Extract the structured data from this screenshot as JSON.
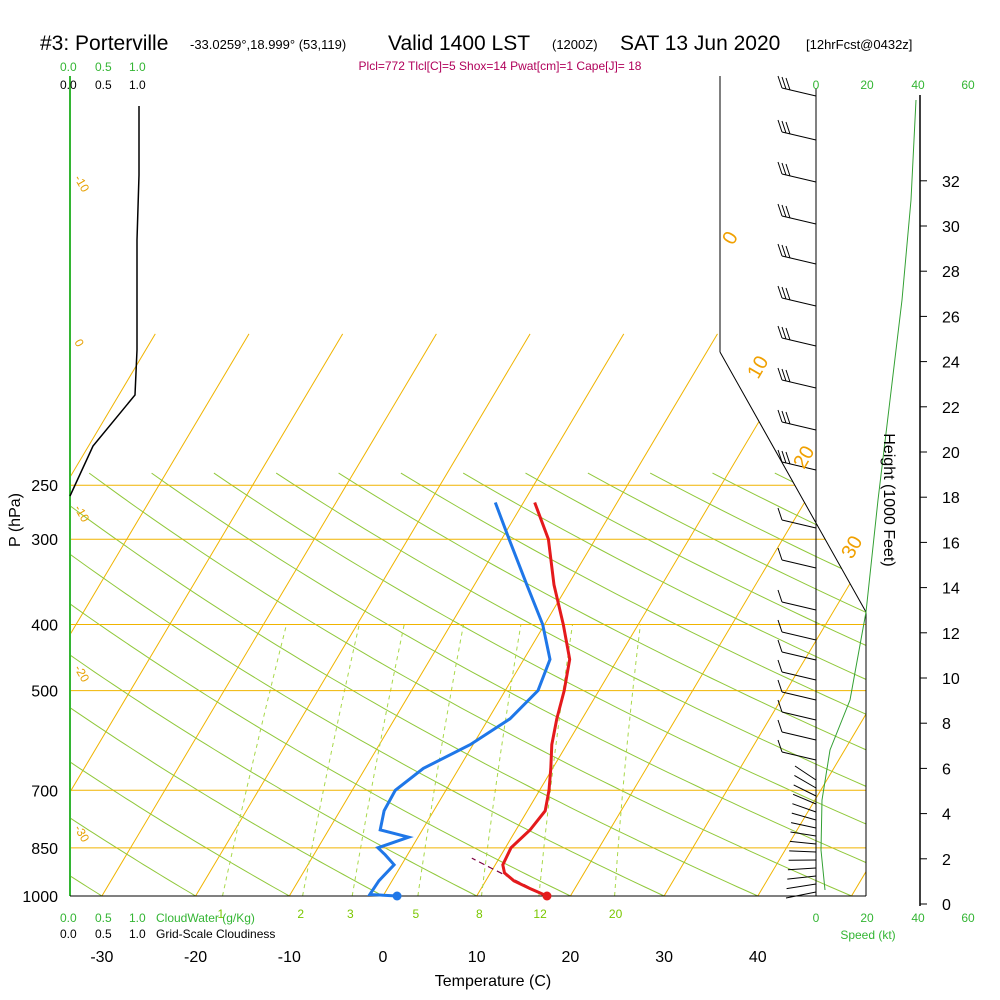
{
  "header": {
    "station": "#3: Porterville",
    "coords": "-33.0259°,18.999° (53,119)",
    "valid": "Valid 1400 LST",
    "zulu": "(1200Z)",
    "date": "SAT 13 Jun 2020",
    "forecast": "[12hrFcst@0432z]",
    "params": "Plcl=772 Tlcl[C]=5 Shox=14 Pwat[cm]=1 Cape[J]= 18"
  },
  "chart_data": {
    "type": "line",
    "xlabel": "Temperature (C)",
    "ylabel": "P (hPa)",
    "y2label": "Height (1000 Feet)",
    "x_ticks": [
      "-30",
      "-20",
      "-10",
      "0",
      "10",
      "20",
      "30",
      "40"
    ],
    "p_ticks": [
      "250",
      "300",
      "400",
      "500",
      "700",
      "850",
      "1000"
    ],
    "height_ticks": [
      "0",
      "2",
      "4",
      "6",
      "8",
      "10",
      "12",
      "14",
      "16",
      "18",
      "20",
      "22",
      "24",
      "26",
      "28",
      "30",
      "32"
    ],
    "isotherm_labels": [
      "0",
      "10",
      "20",
      "30"
    ],
    "left_isotherm_labels": [
      "-10",
      "0",
      "-10",
      "-20",
      "-30"
    ],
    "mixing_ratio_labels": [
      "1",
      "2",
      "3",
      "5",
      "8",
      "12",
      "20"
    ],
    "temperature_profile": [
      [
        1000,
        17.5
      ],
      [
        975,
        15.2
      ],
      [
        950,
        13.0
      ],
      [
        925,
        11.5
      ],
      [
        900,
        10.8
      ],
      [
        850,
        10.6
      ],
      [
        800,
        11.5
      ],
      [
        750,
        11.9
      ],
      [
        700,
        11.0
      ],
      [
        650,
        9.8
      ],
      [
        600,
        8.4
      ],
      [
        550,
        7.3
      ],
      [
        500,
        6.3
      ],
      [
        450,
        4.9
      ],
      [
        400,
        2.0
      ],
      [
        350,
        -1.5
      ],
      [
        300,
        -5.0
      ],
      [
        265,
        -8.8
      ]
    ],
    "dewpoint_profile": [
      [
        1000,
        1.5
      ],
      [
        995,
        -1.5
      ],
      [
        950,
        -1.4
      ],
      [
        900,
        -0.8
      ],
      [
        870,
        -2.4
      ],
      [
        850,
        -3.6
      ],
      [
        820,
        -1.0
      ],
      [
        800,
        -4.5
      ],
      [
        750,
        -5.3
      ],
      [
        700,
        -5.4
      ],
      [
        650,
        -3.8
      ],
      [
        600,
        -0.3
      ],
      [
        550,
        2.3
      ],
      [
        500,
        3.5
      ],
      [
        450,
        2.8
      ],
      [
        400,
        -0.2
      ],
      [
        350,
        -4.4
      ],
      [
        300,
        -9.2
      ],
      [
        265,
        -13.0
      ]
    ],
    "surface_parcel": {
      "temperature": 17.5,
      "dewpoint": 1.5
    },
    "cloudiness_axis": {
      "ticks": [
        "0.0",
        "0.5",
        "1.0"
      ],
      "label": "Grid-Scale Cloudiness"
    },
    "cloudwater_axis": {
      "ticks": [
        "0.0",
        "0.5",
        "1.0"
      ],
      "label": "CloudWater (g/Kg)"
    },
    "speed_axis": {
      "ticks": [
        "0",
        "20",
        "40",
        "60"
      ],
      "label": "Speed (kt)"
    }
  },
  "colors": {
    "isotherm": "#f0b400",
    "dry_adiabat": "#90c83a",
    "mixing_ratio": "#a8d84a",
    "temperature": "#e41a1c",
    "dewpoint": "#1f77e8",
    "params_text": "#b0005a",
    "green_axis": "#33b533"
  }
}
